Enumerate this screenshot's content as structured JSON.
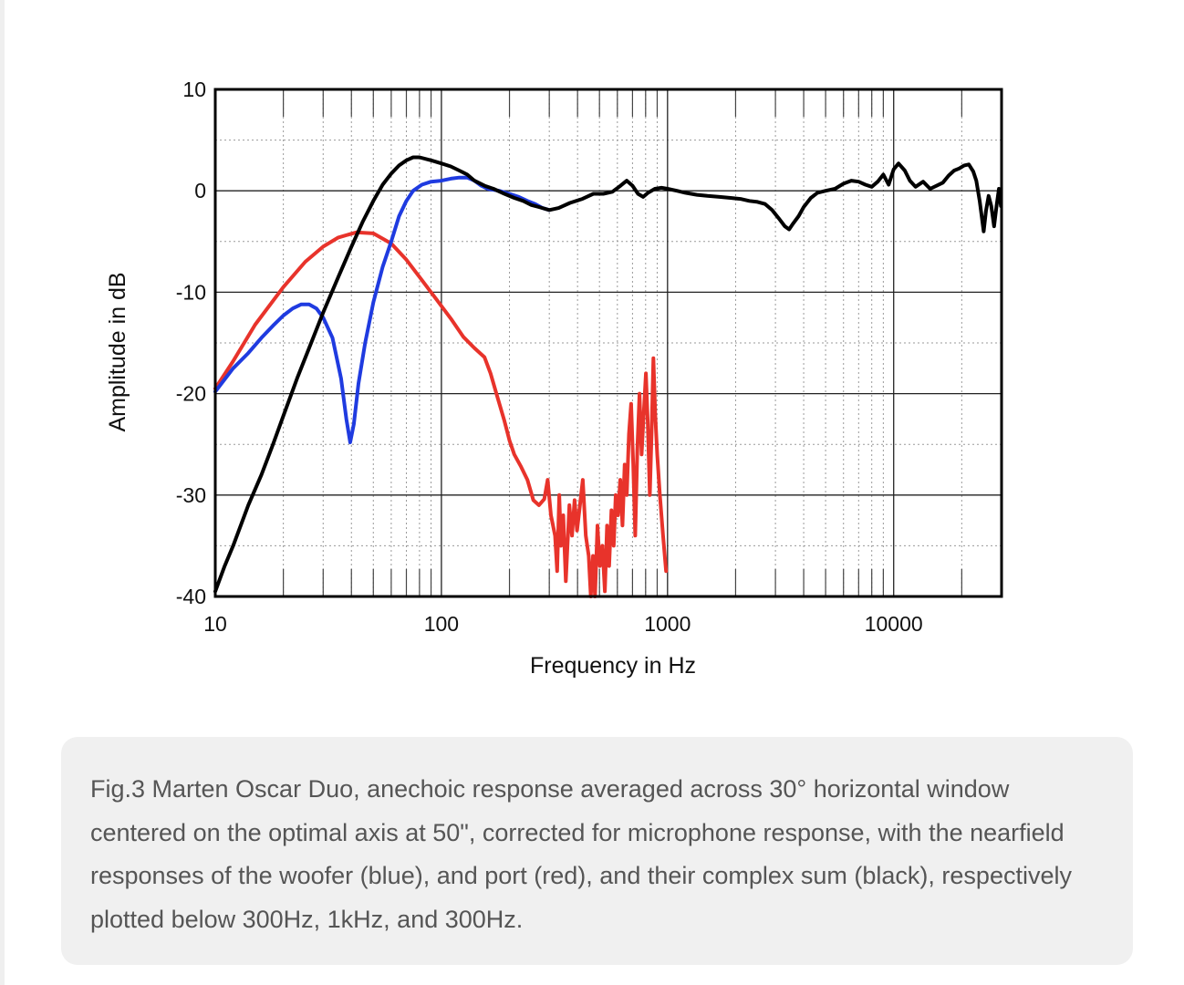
{
  "chart_data": {
    "type": "line",
    "title": "",
    "xlabel": "Frequency in Hz",
    "ylabel": "Amplitude in dB",
    "xscale": "log",
    "xlim": [
      10,
      30000
    ],
    "ylim": [
      -40,
      10
    ],
    "x_ticks": [
      10,
      100,
      1000,
      10000
    ],
    "y_ticks": [
      10,
      0,
      -10,
      -20,
      -30,
      -40
    ],
    "grid": true,
    "series": [
      {
        "name": "port (red)",
        "color": "#e8332b",
        "points": [
          [
            10,
            -19.5
          ],
          [
            12,
            -16.8
          ],
          [
            15,
            -13.2
          ],
          [
            20,
            -9.5
          ],
          [
            25,
            -7
          ],
          [
            30,
            -5.5
          ],
          [
            35,
            -4.6
          ],
          [
            42,
            -4.1
          ],
          [
            50,
            -4.2
          ],
          [
            60,
            -5.2
          ],
          [
            70,
            -6.8
          ],
          [
            80,
            -8.5
          ],
          [
            95,
            -10.7
          ],
          [
            110,
            -12.6
          ],
          [
            125,
            -14.4
          ],
          [
            140,
            -15.5
          ],
          [
            155,
            -16.4
          ],
          [
            165,
            -18
          ],
          [
            175,
            -20
          ],
          [
            190,
            -22.7
          ],
          [
            200,
            -24.6
          ],
          [
            210,
            -26
          ],
          [
            225,
            -27.2
          ],
          [
            240,
            -28.5
          ],
          [
            255,
            -30.5
          ],
          [
            270,
            -31
          ],
          [
            285,
            -30.4
          ],
          [
            295,
            -28.5
          ],
          [
            305,
            -32
          ],
          [
            318,
            -34
          ],
          [
            325,
            -37.5
          ],
          [
            332,
            -30
          ],
          [
            338,
            -35
          ],
          [
            346,
            -32
          ],
          [
            355,
            -38.5
          ],
          [
            368,
            -31
          ],
          [
            378,
            -34
          ],
          [
            388,
            -30.5
          ],
          [
            398,
            -33.5
          ],
          [
            410,
            -31
          ],
          [
            422,
            -28.5
          ],
          [
            435,
            -34
          ],
          [
            448,
            -36
          ],
          [
            458,
            -40
          ],
          [
            468,
            -36
          ],
          [
            478,
            -40
          ],
          [
            490,
            -33
          ],
          [
            502,
            -37
          ],
          [
            515,
            -35
          ],
          [
            528,
            -39.5
          ],
          [
            540,
            -33
          ],
          [
            552,
            -37
          ],
          [
            565,
            -31.5
          ],
          [
            578,
            -35
          ],
          [
            590,
            -30
          ],
          [
            604,
            -32
          ],
          [
            618,
            -28.5
          ],
          [
            632,
            -33
          ],
          [
            646,
            -27
          ],
          [
            660,
            -30
          ],
          [
            675,
            -24
          ],
          [
            690,
            -21
          ],
          [
            705,
            -27
          ],
          [
            720,
            -34
          ],
          [
            735,
            -25.5
          ],
          [
            752,
            -20
          ],
          [
            768,
            -26
          ],
          [
            785,
            -22
          ],
          [
            802,
            -18
          ],
          [
            818,
            -23
          ],
          [
            835,
            -30
          ],
          [
            850,
            -24
          ],
          [
            866,
            -16.5
          ],
          [
            882,
            -22
          ],
          [
            900,
            -26
          ],
          [
            925,
            -30
          ],
          [
            955,
            -34
          ],
          [
            985,
            -37.5
          ]
        ]
      },
      {
        "name": "woofer (blue)",
        "color": "#1f3be0",
        "points": [
          [
            10,
            -19.8
          ],
          [
            12,
            -17.5
          ],
          [
            14,
            -16
          ],
          [
            16,
            -14.5
          ],
          [
            18,
            -13.3
          ],
          [
            20,
            -12.3
          ],
          [
            22,
            -11.6
          ],
          [
            24,
            -11.2
          ],
          [
            26,
            -11.2
          ],
          [
            28,
            -11.6
          ],
          [
            30,
            -12.5
          ],
          [
            33,
            -14.5
          ],
          [
            36,
            -18.5
          ],
          [
            38,
            -22.5
          ],
          [
            39.5,
            -24.8
          ],
          [
            41,
            -23
          ],
          [
            43,
            -19
          ],
          [
            46,
            -15
          ],
          [
            50,
            -11
          ],
          [
            55,
            -7.5
          ],
          [
            60,
            -5
          ],
          [
            65,
            -2.5
          ],
          [
            70,
            -1
          ],
          [
            75,
            0
          ],
          [
            82,
            0.6
          ],
          [
            90,
            0.9
          ],
          [
            100,
            1
          ],
          [
            110,
            1.2
          ],
          [
            120,
            1.3
          ],
          [
            130,
            1.3
          ],
          [
            140,
            1
          ],
          [
            150,
            0.5
          ],
          [
            160,
            0.2
          ],
          [
            180,
            0
          ],
          [
            200,
            -0.3
          ],
          [
            220,
            -0.6
          ],
          [
            240,
            -1
          ],
          [
            260,
            -1.3
          ],
          [
            280,
            -1.7
          ],
          [
            300,
            -1.9
          ]
        ]
      },
      {
        "name": "complex sum (black)",
        "color": "#000000",
        "points": [
          [
            10,
            -39.5
          ],
          [
            11,
            -37
          ],
          [
            12,
            -35
          ],
          [
            14,
            -31
          ],
          [
            16,
            -28
          ],
          [
            18,
            -25
          ],
          [
            20,
            -22.2
          ],
          [
            23,
            -18.5
          ],
          [
            26,
            -15.5
          ],
          [
            30,
            -12
          ],
          [
            35,
            -8.5
          ],
          [
            40,
            -5.5
          ],
          [
            45,
            -3
          ],
          [
            50,
            -1
          ],
          [
            55,
            0.6
          ],
          [
            60,
            1.7
          ],
          [
            65,
            2.5
          ],
          [
            70,
            3
          ],
          [
            75,
            3.3
          ],
          [
            80,
            3.3
          ],
          [
            90,
            3
          ],
          [
            100,
            2.7
          ],
          [
            110,
            2.4
          ],
          [
            120,
            2
          ],
          [
            130,
            1.6
          ],
          [
            140,
            1
          ],
          [
            155,
            0.5
          ],
          [
            170,
            0.2
          ],
          [
            190,
            -0.3
          ],
          [
            210,
            -0.7
          ],
          [
            230,
            -1
          ],
          [
            250,
            -1.4
          ],
          [
            270,
            -1.6
          ],
          [
            300,
            -1.9
          ],
          [
            330,
            -1.7
          ],
          [
            370,
            -1.2
          ],
          [
            420,
            -0.8
          ],
          [
            470,
            -0.3
          ],
          [
            520,
            -0.3
          ],
          [
            570,
            -0.1
          ],
          [
            620,
            0.5
          ],
          [
            660,
            1
          ],
          [
            700,
            0.5
          ],
          [
            740,
            -0.3
          ],
          [
            780,
            -0.6
          ],
          [
            820,
            -0.2
          ],
          [
            880,
            0.2
          ],
          [
            940,
            0.3
          ],
          [
            1000,
            0.2
          ],
          [
            1100,
            0
          ],
          [
            1200,
            -0.2
          ],
          [
            1350,
            -0.4
          ],
          [
            1500,
            -0.5
          ],
          [
            1700,
            -0.6
          ],
          [
            1900,
            -0.7
          ],
          [
            2100,
            -0.8
          ],
          [
            2300,
            -1
          ],
          [
            2500,
            -1.1
          ],
          [
            2700,
            -1.3
          ],
          [
            2900,
            -1.9
          ],
          [
            3100,
            -2.7
          ],
          [
            3300,
            -3.5
          ],
          [
            3450,
            -3.8
          ],
          [
            3600,
            -3.2
          ],
          [
            3800,
            -2.5
          ],
          [
            4000,
            -1.6
          ],
          [
            4300,
            -0.7
          ],
          [
            4600,
            -0.2
          ],
          [
            5000,
            0
          ],
          [
            5500,
            0.2
          ],
          [
            6000,
            0.7
          ],
          [
            6500,
            1
          ],
          [
            7000,
            0.9
          ],
          [
            7500,
            0.6
          ],
          [
            8000,
            0.4
          ],
          [
            8500,
            0.9
          ],
          [
            9000,
            1.6
          ],
          [
            9500,
            0.6
          ],
          [
            10000,
            2.1
          ],
          [
            10500,
            2.7
          ],
          [
            11200,
            2
          ],
          [
            11800,
            1
          ],
          [
            12500,
            0.4
          ],
          [
            13500,
            0.9
          ],
          [
            14500,
            0.2
          ],
          [
            15500,
            0.5
          ],
          [
            16500,
            0.8
          ],
          [
            17500,
            1.5
          ],
          [
            18500,
            2
          ],
          [
            19500,
            2.2
          ],
          [
            20500,
            2.5
          ],
          [
            21500,
            2.6
          ],
          [
            22500,
            1.9
          ],
          [
            23200,
            1
          ],
          [
            24000,
            -1
          ],
          [
            24500,
            -2.5
          ],
          [
            25000,
            -4
          ],
          [
            25600,
            -2
          ],
          [
            26300,
            -0.5
          ],
          [
            27000,
            -1.5
          ],
          [
            27800,
            -3.5
          ],
          [
            28500,
            -1.5
          ],
          [
            29200,
            0.2
          ],
          [
            29800,
            -1.5
          ]
        ]
      }
    ]
  },
  "caption": {
    "text": "Fig.3 Marten Oscar Duo, anechoic response averaged across 30° horizontal window centered on the optimal axis at 50\", corrected for microphone response, with the nearfield responses of the woofer (blue), and port (red), and their complex sum (black), respectively plotted below 300Hz, 1kHz, and 300Hz."
  }
}
